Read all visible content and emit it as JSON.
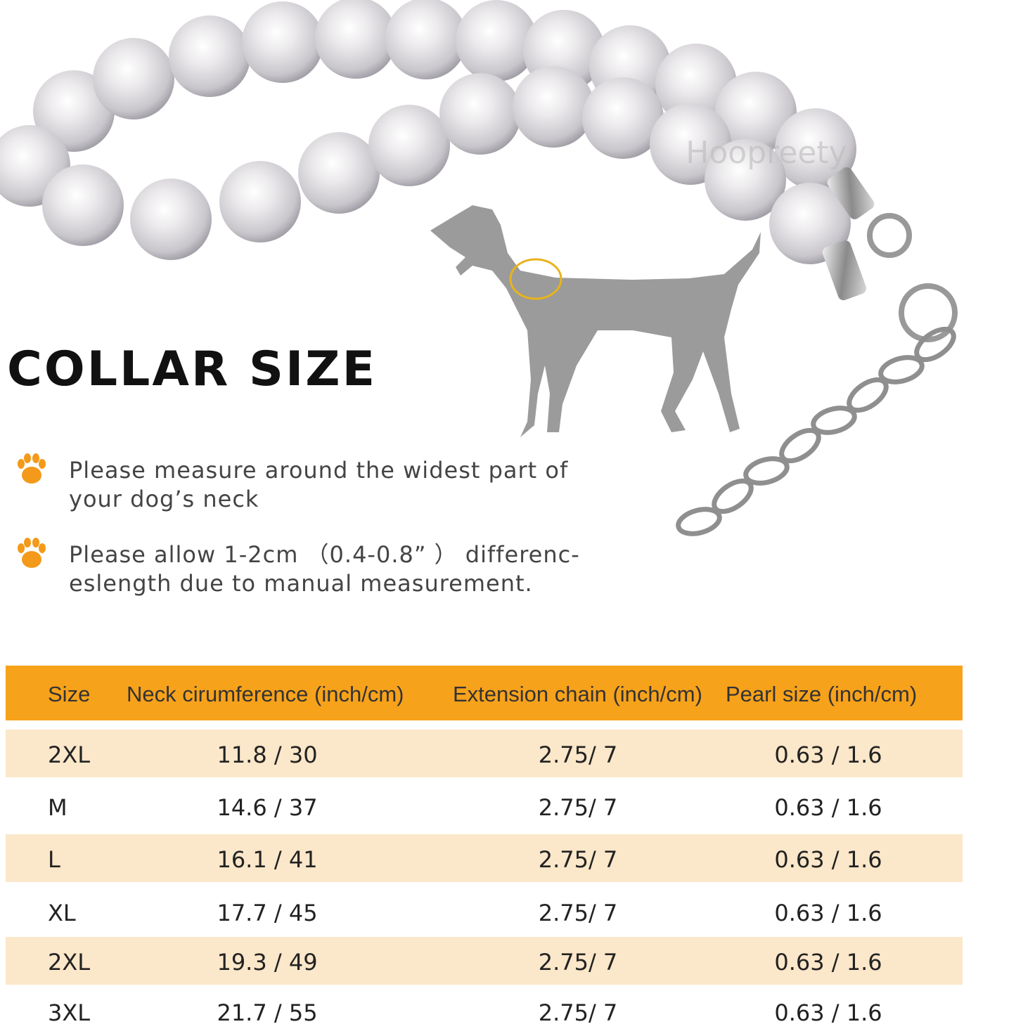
{
  "watermark": "Hoopreety",
  "title": "COLLAR SIZE",
  "notes": [
    {
      "lines": [
        "Please measure around the widest part of",
        "your dog’s neck"
      ]
    },
    {
      "lines": [
        "Please allow 1-2cm （0.4-0.8” ） differenc-",
        "eslength due to manual measurement."
      ]
    }
  ],
  "table": {
    "header": [
      "Size",
      "Neck cirumference (inch/cm)",
      "Extension chain (inch/cm)",
      "Pearl size (inch/cm)"
    ],
    "rows": [
      [
        "2XL",
        "11.8 / 30",
        "2.75/ 7",
        "0.63 / 1.6"
      ],
      [
        "M",
        "14.6 / 37",
        "2.75/ 7",
        "0.63 / 1.6"
      ],
      [
        "L",
        "16.1 / 41",
        "2.75/ 7",
        "0.63 / 1.6"
      ],
      [
        "XL",
        "17.7 / 45",
        "2.75/ 7",
        "0.63 / 1.6"
      ],
      [
        "2XL",
        "19.3 / 49",
        "2.75/ 7",
        "0.63 / 1.6"
      ],
      [
        "3XL",
        "21.7 / 55",
        "2.75/ 7",
        "0.63 / 1.6"
      ]
    ]
  }
}
